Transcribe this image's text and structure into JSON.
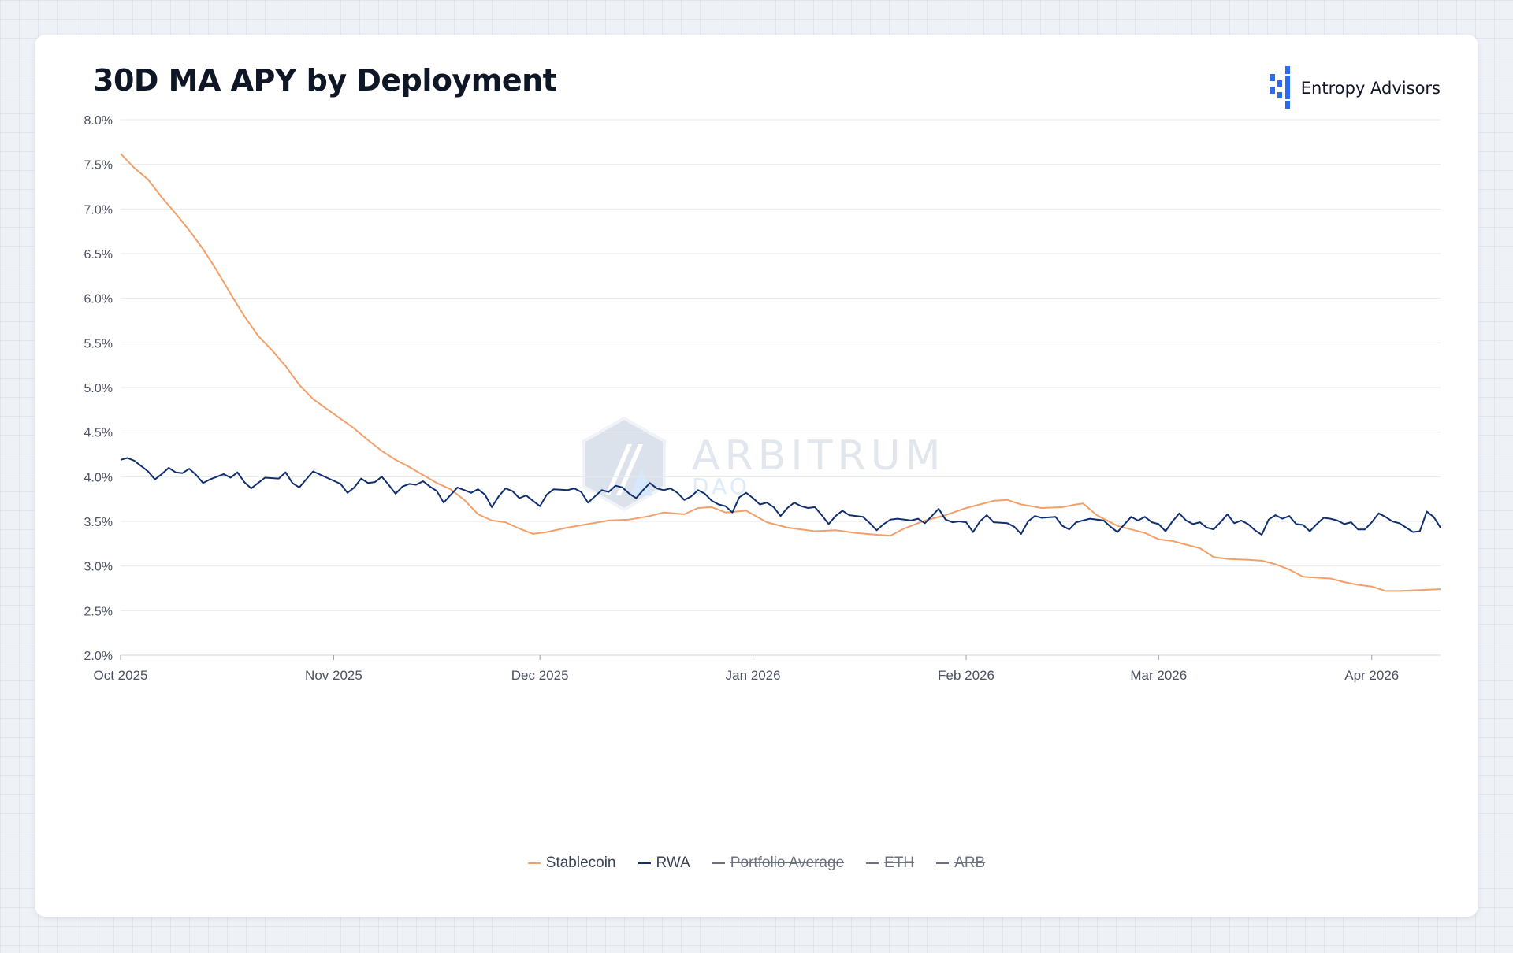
{
  "header": {
    "title": "30D MA APY by Deployment"
  },
  "brand": {
    "name": "Entropy Advisors",
    "icon": "entropy-logo-icon",
    "color": "#2b6bf0"
  },
  "watermark": {
    "name": "ARBITRUM",
    "sub": "DAO",
    "icon": "arbitrum-logo-icon"
  },
  "chart_data": {
    "type": "line",
    "title": "30D MA APY by Deployment",
    "xlabel": "",
    "ylabel": "",
    "x_range": [
      "2025-10-01",
      "2026-04-11"
    ],
    "ylim": [
      2.0,
      8.0
    ],
    "y_ticks": [
      2.0,
      2.5,
      3.0,
      3.5,
      4.0,
      4.5,
      5.0,
      5.5,
      6.0,
      6.5,
      7.0,
      7.5,
      8.0
    ],
    "y_tick_labels": [
      "2.0%",
      "2.5%",
      "3.0%",
      "3.5%",
      "4.0%",
      "4.5%",
      "5.0%",
      "5.5%",
      "6.0%",
      "6.5%",
      "7.0%",
      "7.5%",
      "8.0%"
    ],
    "x_ticks": [
      {
        "date": "2025-10-01",
        "label": "Oct 2025"
      },
      {
        "date": "2025-11-01",
        "label": "Nov 2025"
      },
      {
        "date": "2025-12-01",
        "label": "Dec 2025"
      },
      {
        "date": "2026-01-01",
        "label": "Jan 2026"
      },
      {
        "date": "2026-02-01",
        "label": "Feb 2026"
      },
      {
        "date": "2026-03-01",
        "label": "Mar 2026"
      },
      {
        "date": "2026-04-01",
        "label": "Apr 2026"
      }
    ],
    "grid": true,
    "legend_position": "bottom",
    "series": [
      {
        "name": "Stablecoin",
        "color": "#f2a06a",
        "visible": true,
        "points": [
          [
            "2025-10-01",
            7.62
          ],
          [
            "2025-10-03",
            7.46
          ],
          [
            "2025-10-05",
            7.33
          ],
          [
            "2025-10-07",
            7.13
          ],
          [
            "2025-10-09",
            6.95
          ],
          [
            "2025-10-11",
            6.76
          ],
          [
            "2025-10-13",
            6.55
          ],
          [
            "2025-10-15",
            6.31
          ],
          [
            "2025-10-17",
            6.05
          ],
          [
            "2025-10-19",
            5.8
          ],
          [
            "2025-10-21",
            5.58
          ],
          [
            "2025-10-23",
            5.42
          ],
          [
            "2025-10-25",
            5.24
          ],
          [
            "2025-10-27",
            5.03
          ],
          [
            "2025-10-29",
            4.87
          ],
          [
            "2025-10-31",
            4.76
          ],
          [
            "2025-11-02",
            4.65
          ],
          [
            "2025-11-04",
            4.54
          ],
          [
            "2025-11-06",
            4.41
          ],
          [
            "2025-11-08",
            4.29
          ],
          [
            "2025-11-10",
            4.19
          ],
          [
            "2025-11-12",
            4.11
          ],
          [
            "2025-11-14",
            4.02
          ],
          [
            "2025-11-16",
            3.93
          ],
          [
            "2025-11-18",
            3.86
          ],
          [
            "2025-11-20",
            3.74
          ],
          [
            "2025-11-22",
            3.58
          ],
          [
            "2025-11-24",
            3.51
          ],
          [
            "2025-11-26",
            3.49
          ],
          [
            "2025-11-28",
            3.42
          ],
          [
            "2025-11-30",
            3.36
          ],
          [
            "2025-12-02",
            3.38
          ],
          [
            "2025-12-05",
            3.43
          ],
          [
            "2025-12-08",
            3.47
          ],
          [
            "2025-12-11",
            3.51
          ],
          [
            "2025-12-14",
            3.52
          ],
          [
            "2025-12-17",
            3.56
          ],
          [
            "2025-12-19",
            3.6
          ],
          [
            "2025-12-22",
            3.58
          ],
          [
            "2025-12-24",
            3.65
          ],
          [
            "2025-12-26",
            3.66
          ],
          [
            "2025-12-28",
            3.6
          ],
          [
            "2025-12-31",
            3.62
          ],
          [
            "2026-01-03",
            3.49
          ],
          [
            "2026-01-06",
            3.43
          ],
          [
            "2026-01-10",
            3.39
          ],
          [
            "2026-01-13",
            3.4
          ],
          [
            "2026-01-16",
            3.37
          ],
          [
            "2026-01-19",
            3.35
          ],
          [
            "2026-01-21",
            3.34
          ],
          [
            "2026-01-23",
            3.42
          ],
          [
            "2026-01-26",
            3.51
          ],
          [
            "2026-01-29",
            3.57
          ],
          [
            "2026-02-01",
            3.65
          ],
          [
            "2026-02-03",
            3.69
          ],
          [
            "2026-02-05",
            3.73
          ],
          [
            "2026-02-07",
            3.74
          ],
          [
            "2026-02-09",
            3.69
          ],
          [
            "2026-02-12",
            3.65
          ],
          [
            "2026-02-15",
            3.66
          ],
          [
            "2026-02-17",
            3.69
          ],
          [
            "2026-02-18",
            3.7
          ],
          [
            "2026-02-20",
            3.57
          ],
          [
            "2026-02-23",
            3.45
          ],
          [
            "2026-02-25",
            3.41
          ],
          [
            "2026-02-27",
            3.37
          ],
          [
            "2026-03-01",
            3.3
          ],
          [
            "2026-03-03",
            3.28
          ],
          [
            "2026-03-05",
            3.24
          ],
          [
            "2026-03-07",
            3.2
          ],
          [
            "2026-03-09",
            3.1
          ],
          [
            "2026-03-11",
            3.08
          ],
          [
            "2026-03-14",
            3.07
          ],
          [
            "2026-03-16",
            3.06
          ],
          [
            "2026-03-18",
            3.02
          ],
          [
            "2026-03-20",
            2.96
          ],
          [
            "2026-03-22",
            2.88
          ],
          [
            "2026-03-24",
            2.87
          ],
          [
            "2026-03-26",
            2.86
          ],
          [
            "2026-03-28",
            2.82
          ],
          [
            "2026-03-30",
            2.79
          ],
          [
            "2026-04-01",
            2.77
          ],
          [
            "2026-04-03",
            2.72
          ],
          [
            "2026-04-05",
            2.72
          ],
          [
            "2026-04-08",
            2.73
          ],
          [
            "2026-04-11",
            2.74
          ]
        ]
      },
      {
        "name": "RWA",
        "color": "#0f2f6e",
        "visible": true,
        "points": [
          [
            "2025-10-01",
            4.19
          ],
          [
            "2025-10-02",
            4.21
          ],
          [
            "2025-10-03",
            4.18
          ],
          [
            "2025-10-05",
            4.06
          ],
          [
            "2025-10-06",
            3.97
          ],
          [
            "2025-10-07",
            4.03
          ],
          [
            "2025-10-08",
            4.1
          ],
          [
            "2025-10-09",
            4.05
          ],
          [
            "2025-10-10",
            4.04
          ],
          [
            "2025-10-11",
            4.09
          ],
          [
            "2025-10-12",
            4.02
          ],
          [
            "2025-10-13",
            3.93
          ],
          [
            "2025-10-14",
            3.97
          ],
          [
            "2025-10-16",
            4.03
          ],
          [
            "2025-10-17",
            3.99
          ],
          [
            "2025-10-18",
            4.05
          ],
          [
            "2025-10-19",
            3.94
          ],
          [
            "2025-10-20",
            3.87
          ],
          [
            "2025-10-21",
            3.93
          ],
          [
            "2025-10-22",
            3.99
          ],
          [
            "2025-10-24",
            3.98
          ],
          [
            "2025-10-25",
            4.05
          ],
          [
            "2025-10-26",
            3.93
          ],
          [
            "2025-10-27",
            3.88
          ],
          [
            "2025-10-29",
            4.06
          ],
          [
            "2025-10-31",
            3.99
          ],
          [
            "2025-11-02",
            3.92
          ],
          [
            "2025-11-03",
            3.82
          ],
          [
            "2025-11-04",
            3.88
          ],
          [
            "2025-11-05",
            3.98
          ],
          [
            "2025-11-06",
            3.93
          ],
          [
            "2025-11-07",
            3.94
          ],
          [
            "2025-11-08",
            4.0
          ],
          [
            "2025-11-09",
            3.91
          ],
          [
            "2025-11-10",
            3.81
          ],
          [
            "2025-11-11",
            3.89
          ],
          [
            "2025-11-12",
            3.92
          ],
          [
            "2025-11-13",
            3.91
          ],
          [
            "2025-11-14",
            3.95
          ],
          [
            "2025-11-15",
            3.89
          ],
          [
            "2025-11-16",
            3.84
          ],
          [
            "2025-11-17",
            3.71
          ],
          [
            "2025-11-19",
            3.88
          ],
          [
            "2025-11-20",
            3.85
          ],
          [
            "2025-11-21",
            3.82
          ],
          [
            "2025-11-22",
            3.86
          ],
          [
            "2025-11-23",
            3.8
          ],
          [
            "2025-11-24",
            3.66
          ],
          [
            "2025-11-25",
            3.78
          ],
          [
            "2025-11-26",
            3.87
          ],
          [
            "2025-11-27",
            3.84
          ],
          [
            "2025-11-28",
            3.76
          ],
          [
            "2025-11-29",
            3.79
          ],
          [
            "2025-11-30",
            3.73
          ],
          [
            "2025-12-01",
            3.67
          ],
          [
            "2025-12-02",
            3.8
          ],
          [
            "2025-12-03",
            3.86
          ],
          [
            "2025-12-05",
            3.85
          ],
          [
            "2025-12-06",
            3.87
          ],
          [
            "2025-12-07",
            3.83
          ],
          [
            "2025-12-08",
            3.71
          ],
          [
            "2025-12-10",
            3.85
          ],
          [
            "2025-12-11",
            3.83
          ],
          [
            "2025-12-12",
            3.9
          ],
          [
            "2025-12-13",
            3.88
          ],
          [
            "2025-12-14",
            3.81
          ],
          [
            "2025-12-15",
            3.76
          ],
          [
            "2025-12-16",
            3.85
          ],
          [
            "2025-12-17",
            3.93
          ],
          [
            "2025-12-18",
            3.87
          ],
          [
            "2025-12-19",
            3.85
          ],
          [
            "2025-12-20",
            3.87
          ],
          [
            "2025-12-21",
            3.82
          ],
          [
            "2025-12-22",
            3.74
          ],
          [
            "2025-12-23",
            3.78
          ],
          [
            "2025-12-24",
            3.85
          ],
          [
            "2025-12-25",
            3.81
          ],
          [
            "2025-12-26",
            3.73
          ],
          [
            "2025-12-27",
            3.69
          ],
          [
            "2025-12-28",
            3.67
          ],
          [
            "2025-12-29",
            3.6
          ],
          [
            "2025-12-30",
            3.77
          ],
          [
            "2025-12-31",
            3.82
          ],
          [
            "2026-01-01",
            3.76
          ],
          [
            "2026-01-02",
            3.69
          ],
          [
            "2026-01-03",
            3.71
          ],
          [
            "2026-01-04",
            3.66
          ],
          [
            "2026-01-05",
            3.56
          ],
          [
            "2026-01-06",
            3.65
          ],
          [
            "2026-01-07",
            3.71
          ],
          [
            "2026-01-08",
            3.67
          ],
          [
            "2026-01-09",
            3.65
          ],
          [
            "2026-01-10",
            3.66
          ],
          [
            "2026-01-11",
            3.57
          ],
          [
            "2026-01-12",
            3.47
          ],
          [
            "2026-01-13",
            3.56
          ],
          [
            "2026-01-14",
            3.62
          ],
          [
            "2026-01-15",
            3.57
          ],
          [
            "2026-01-17",
            3.55
          ],
          [
            "2026-01-18",
            3.48
          ],
          [
            "2026-01-19",
            3.4
          ],
          [
            "2026-01-20",
            3.47
          ],
          [
            "2026-01-21",
            3.52
          ],
          [
            "2026-01-22",
            3.53
          ],
          [
            "2026-01-24",
            3.51
          ],
          [
            "2026-01-25",
            3.53
          ],
          [
            "2026-01-26",
            3.48
          ],
          [
            "2026-01-28",
            3.64
          ],
          [
            "2026-01-29",
            3.52
          ],
          [
            "2026-01-30",
            3.49
          ],
          [
            "2026-01-31",
            3.5
          ],
          [
            "2026-02-01",
            3.49
          ],
          [
            "2026-02-02",
            3.38
          ],
          [
            "2026-02-03",
            3.5
          ],
          [
            "2026-02-04",
            3.57
          ],
          [
            "2026-02-05",
            3.49
          ],
          [
            "2026-02-07",
            3.48
          ],
          [
            "2026-02-08",
            3.44
          ],
          [
            "2026-02-09",
            3.36
          ],
          [
            "2026-02-10",
            3.5
          ],
          [
            "2026-02-11",
            3.56
          ],
          [
            "2026-02-12",
            3.54
          ],
          [
            "2026-02-14",
            3.55
          ],
          [
            "2026-02-15",
            3.45
          ],
          [
            "2026-02-16",
            3.41
          ],
          [
            "2026-02-17",
            3.49
          ],
          [
            "2026-02-18",
            3.51
          ],
          [
            "2026-02-19",
            3.53
          ],
          [
            "2026-02-21",
            3.51
          ],
          [
            "2026-02-22",
            3.44
          ],
          [
            "2026-02-23",
            3.38
          ],
          [
            "2026-02-25",
            3.55
          ],
          [
            "2026-02-26",
            3.51
          ],
          [
            "2026-02-27",
            3.55
          ],
          [
            "2026-02-28",
            3.49
          ],
          [
            "2026-03-01",
            3.47
          ],
          [
            "2026-03-02",
            3.39
          ],
          [
            "2026-03-03",
            3.5
          ],
          [
            "2026-03-04",
            3.59
          ],
          [
            "2026-03-05",
            3.51
          ],
          [
            "2026-03-06",
            3.47
          ],
          [
            "2026-03-07",
            3.49
          ],
          [
            "2026-03-08",
            3.43
          ],
          [
            "2026-03-09",
            3.41
          ],
          [
            "2026-03-10",
            3.49
          ],
          [
            "2026-03-11",
            3.58
          ],
          [
            "2026-03-12",
            3.48
          ],
          [
            "2026-03-13",
            3.51
          ],
          [
            "2026-03-14",
            3.47
          ],
          [
            "2026-03-15",
            3.4
          ],
          [
            "2026-03-16",
            3.35
          ],
          [
            "2026-03-17",
            3.52
          ],
          [
            "2026-03-18",
            3.57
          ],
          [
            "2026-03-19",
            3.53
          ],
          [
            "2026-03-20",
            3.56
          ],
          [
            "2026-03-21",
            3.47
          ],
          [
            "2026-03-22",
            3.46
          ],
          [
            "2026-03-23",
            3.39
          ],
          [
            "2026-03-24",
            3.47
          ],
          [
            "2026-03-25",
            3.54
          ],
          [
            "2026-03-26",
            3.53
          ],
          [
            "2026-03-27",
            3.51
          ],
          [
            "2026-03-28",
            3.47
          ],
          [
            "2026-03-29",
            3.49
          ],
          [
            "2026-03-30",
            3.41
          ],
          [
            "2026-03-31",
            3.41
          ],
          [
            "2026-04-01",
            3.49
          ],
          [
            "2026-04-02",
            3.59
          ],
          [
            "2026-04-03",
            3.55
          ],
          [
            "2026-04-04",
            3.5
          ],
          [
            "2026-04-05",
            3.48
          ],
          [
            "2026-04-06",
            3.43
          ],
          [
            "2026-04-07",
            3.38
          ],
          [
            "2026-04-08",
            3.39
          ],
          [
            "2026-04-09",
            3.61
          ],
          [
            "2026-04-10",
            3.55
          ],
          [
            "2026-04-11",
            3.43
          ]
        ]
      },
      {
        "name": "Portfolio Average",
        "color": "#3a4254",
        "visible": false,
        "points": []
      },
      {
        "name": "ETH",
        "color": "#3a4254",
        "visible": false,
        "points": []
      },
      {
        "name": "ARB",
        "color": "#3a4254",
        "visible": false,
        "points": []
      }
    ]
  }
}
